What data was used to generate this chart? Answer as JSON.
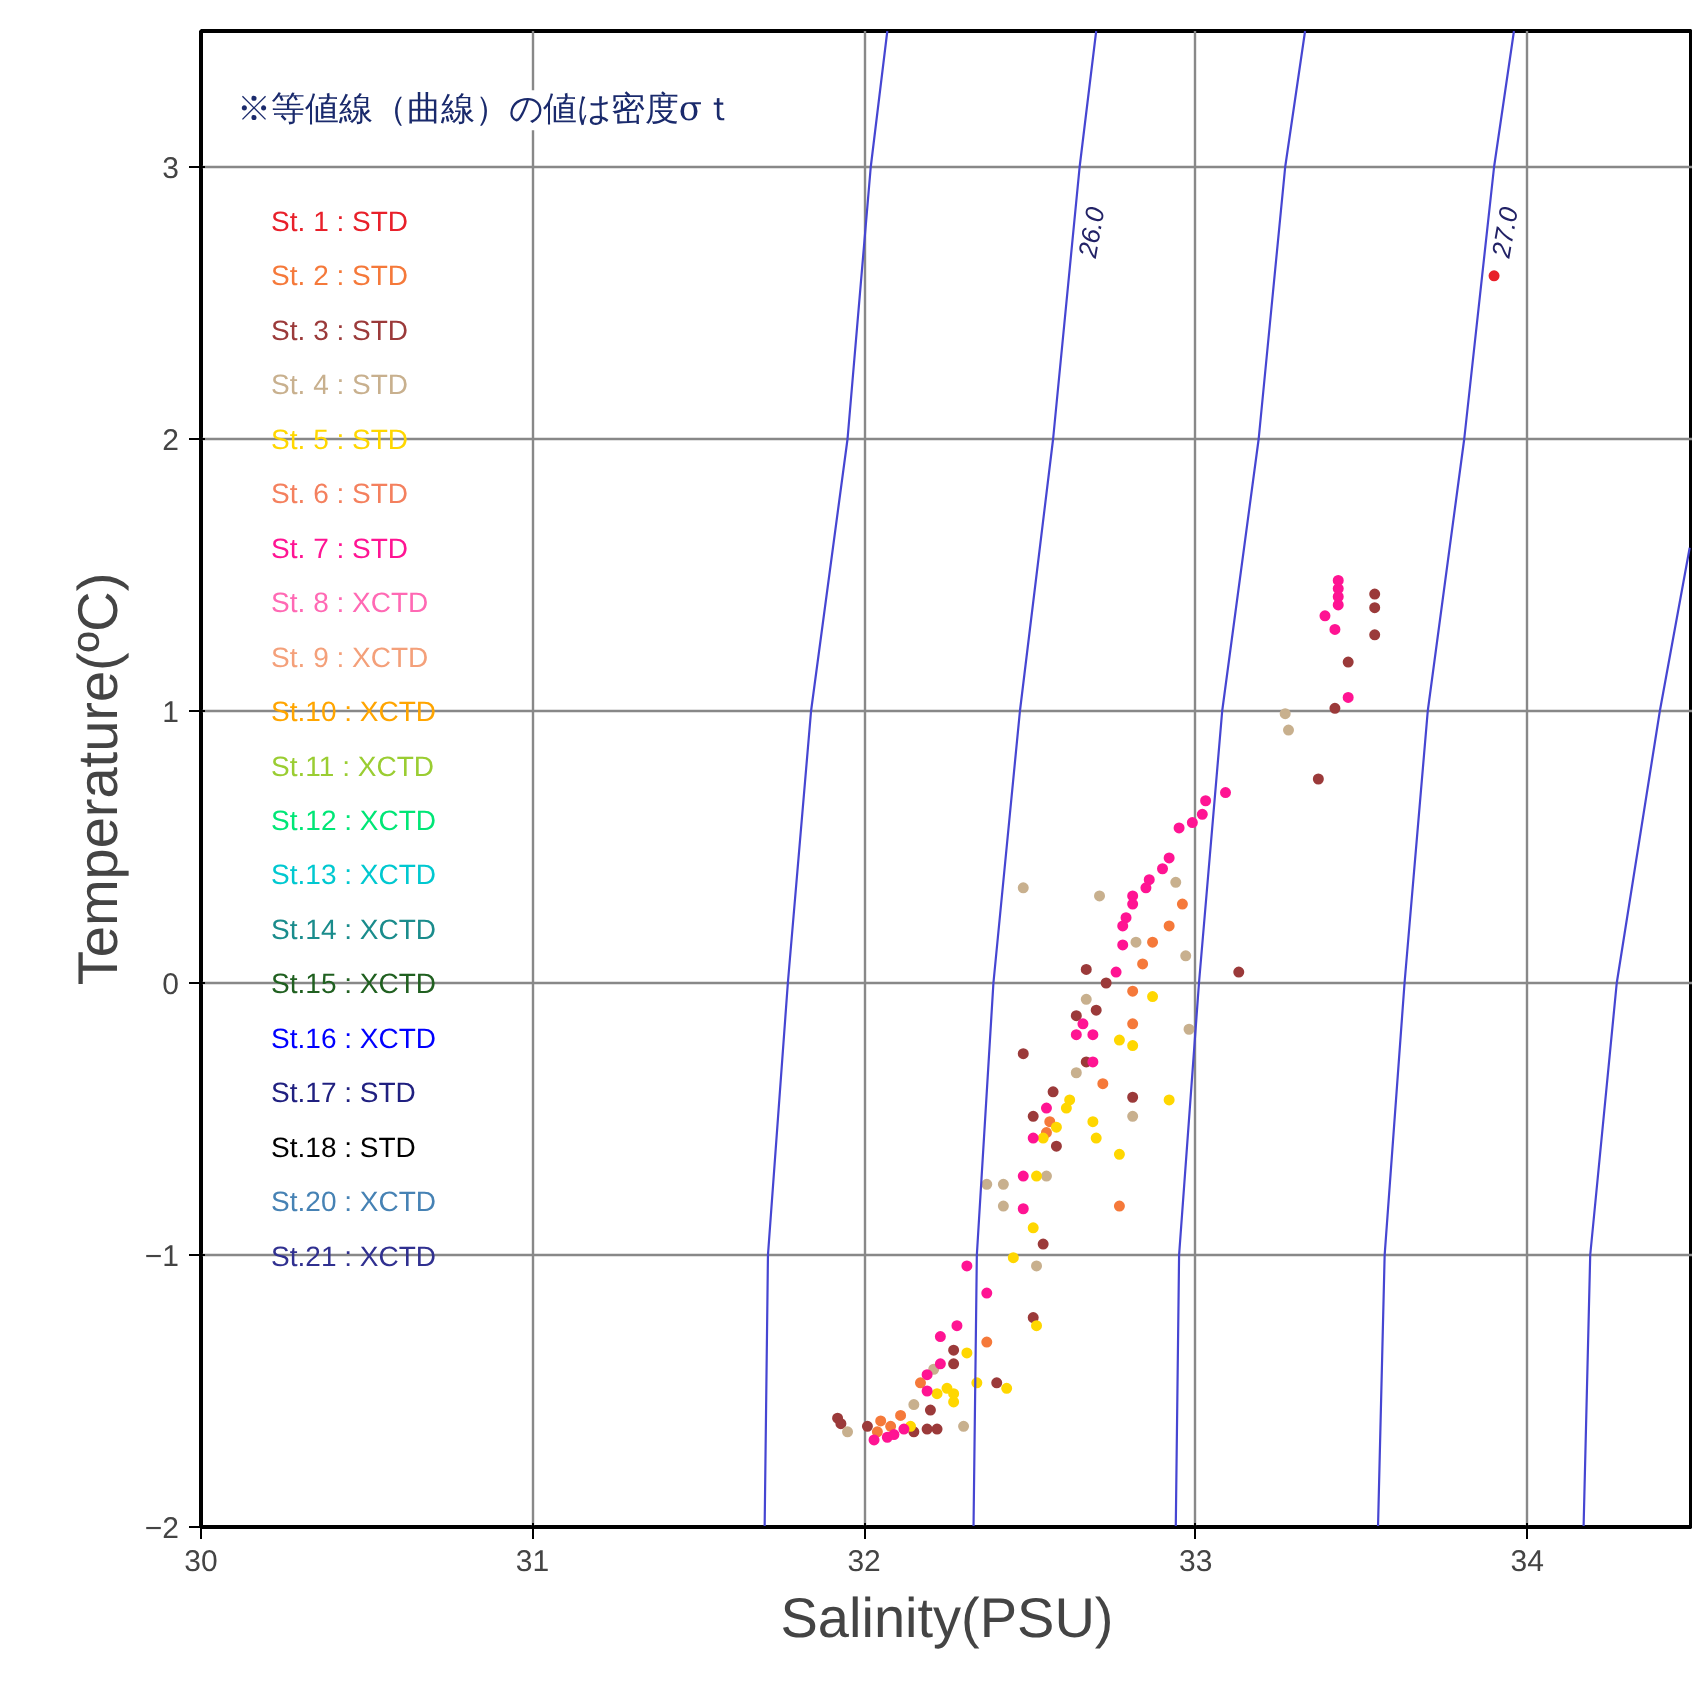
{
  "chart_data": {
    "type": "scatter",
    "xlabel": "Salinity(PSU)",
    "ylabel": "Temperature(ºC)",
    "xlim": [
      30,
      34.5
    ],
    "ylim": [
      -2,
      3.5
    ],
    "xticks": [
      30,
      31,
      32,
      33,
      34
    ],
    "yticks": [
      -2,
      -1,
      0,
      1,
      2,
      3
    ],
    "grid": true,
    "legend": "top left",
    "marker": "circle",
    "annotations": [
      "※等値線（曲線）の値は密度σｔ",
      {
        "text": "26.0",
        "x": 32.631,
        "y": 2.76
      },
      {
        "text": "27.0",
        "x": 33.878,
        "y": 2.76
      }
    ],
    "series": [
      {
        "name": "St. 1 : STD",
        "color": "#e8202a",
        "x": [
          33.9
        ],
        "values": [
          2.6
        ]
      },
      {
        "name": "St. 2 : STD",
        "color": "#f5793a",
        "x": [
          32.96,
          32.92,
          32.87,
          32.84,
          32.81,
          32.81,
          32.72,
          32.56,
          32.55,
          32.77,
          32.37,
          32.17,
          32.05,
          32.08,
          32.11,
          32.04
        ],
        "values": [
          0.29,
          0.21,
          0.15,
          0.07,
          -0.03,
          -0.15,
          -0.37,
          -0.51,
          -0.55,
          -0.82,
          -1.32,
          -1.47,
          -1.61,
          -1.63,
          -1.59,
          -1.65
        ]
      },
      {
        "name": "St. 3 : STD",
        "color": "#9b3a3a",
        "x": [
          33.54,
          33.54,
          33.54,
          33.46,
          33.42,
          33.37,
          33.13,
          32.67,
          32.73,
          32.7,
          32.64,
          32.48,
          32.67,
          32.57,
          32.81,
          32.51,
          32.58,
          32.54,
          32.51,
          32.27,
          32.27,
          32.4,
          32.2,
          31.92,
          31.93,
          32.01,
          32.15,
          32.19,
          32.22
        ],
        "values": [
          1.43,
          1.38,
          1.28,
          1.18,
          1.01,
          0.75,
          0.04,
          0.05,
          0.0,
          -0.1,
          -0.12,
          -0.26,
          -0.29,
          -0.4,
          -0.42,
          -0.49,
          -0.6,
          -0.96,
          -1.23,
          -1.35,
          -1.4,
          -1.47,
          -1.57,
          -1.6,
          -1.62,
          -1.63,
          -1.65,
          -1.64,
          -1.64
        ]
      },
      {
        "name": "St. 4 : STD",
        "color": "#c8b08e",
        "x": [
          33.27,
          33.28,
          32.94,
          32.97,
          32.48,
          32.71,
          32.82,
          32.67,
          32.98,
          32.64,
          32.81,
          32.55,
          32.37,
          32.42,
          32.42,
          32.52,
          32.21,
          32.15,
          31.95,
          32.3
        ],
        "values": [
          0.99,
          0.93,
          0.37,
          0.1,
          0.35,
          0.32,
          0.15,
          -0.06,
          -0.17,
          -0.33,
          -0.49,
          -0.71,
          -0.74,
          -0.74,
          -0.82,
          -1.04,
          -1.42,
          -1.55,
          -1.65,
          -1.63
        ]
      },
      {
        "name": "St. 5 : STD",
        "color": "#ffd700",
        "x": [
          32.87,
          32.77,
          32.81,
          32.62,
          32.61,
          32.92,
          32.58,
          32.54,
          32.69,
          32.7,
          32.77,
          32.52,
          32.51,
          32.45,
          32.52,
          32.31,
          32.34,
          32.43,
          32.25,
          32.27,
          32.22,
          32.27,
          32.14
        ],
        "values": [
          -0.05,
          -0.21,
          -0.23,
          -0.43,
          -0.46,
          -0.43,
          -0.53,
          -0.57,
          -0.51,
          -0.57,
          -0.63,
          -0.71,
          -0.9,
          -1.01,
          -1.26,
          -1.36,
          -1.47,
          -1.49,
          -1.49,
          -1.51,
          -1.51,
          -1.54,
          -1.63
        ]
      },
      {
        "name": "St. 6 : STD",
        "color": "#f4805e"
      },
      {
        "name": "St. 7 : STD",
        "color": "#ff1493",
        "x": [
          33.43,
          33.43,
          33.43,
          33.43,
          33.39,
          33.42,
          33.46,
          33.09,
          33.03,
          33.02,
          32.99,
          32.95,
          32.92,
          32.9,
          32.86,
          32.85,
          32.81,
          32.81,
          32.79,
          32.78,
          32.78,
          32.76,
          32.66,
          32.64,
          32.69,
          32.69,
          32.55,
          32.51,
          32.48,
          32.48,
          32.31,
          32.37,
          32.28,
          32.23,
          32.23,
          32.19,
          32.19,
          32.03,
          32.07,
          32.09,
          32.12
        ],
        "values": [
          1.48,
          1.45,
          1.42,
          1.39,
          1.35,
          1.3,
          1.05,
          0.7,
          0.67,
          0.62,
          0.59,
          0.57,
          0.46,
          0.42,
          0.38,
          0.35,
          0.32,
          0.29,
          0.24,
          0.21,
          0.14,
          0.04,
          -0.15,
          -0.19,
          -0.19,
          -0.29,
          -0.46,
          -0.57,
          -0.71,
          -0.83,
          -1.04,
          -1.14,
          -1.26,
          -1.3,
          -1.4,
          -1.44,
          -1.5,
          -1.68,
          -1.67,
          -1.66,
          -1.64
        ]
      },
      {
        "name": "St. 8 : XCTD",
        "color": "#ff69b4"
      },
      {
        "name": "St. 9 : XCTD",
        "color": "#f4a07a"
      },
      {
        "name": "St.10 : XCTD",
        "color": "#ffa500"
      },
      {
        "name": "St.11 : XCTD",
        "color": "#9acd32"
      },
      {
        "name": "St.12 : XCTD",
        "color": "#00e676"
      },
      {
        "name": "St.13 : XCTD",
        "color": "#00c8d0"
      },
      {
        "name": "St.14 : XCTD",
        "color": "#1a8c8c"
      },
      {
        "name": "St.15 : XCTD",
        "color": "#206020"
      },
      {
        "name": "St.16 : XCTD",
        "color": "#0000ff"
      },
      {
        "name": "St.17 : STD",
        "color": "#202080"
      },
      {
        "name": "St.18 : STD",
        "color": "#000000"
      },
      {
        "name": "St.20 : XCTD",
        "color": "#4682b4"
      },
      {
        "name": "St.21 : XCTD",
        "color": "#303090"
      },
      {
        "type": "line",
        "marker": "none",
        "color": "#4646d2",
        "x": [
          31.7,
          31.71,
          31.77,
          31.84,
          31.95,
          32.02,
          32.07
        ],
        "values": [
          -2,
          -1,
          0,
          1,
          2,
          3,
          3.5
        ]
      },
      {
        "type": "line",
        "marker": "none",
        "color": "#4646d2",
        "x": [
          32.33,
          32.34,
          32.39,
          32.47,
          32.57,
          32.65,
          32.7
        ],
        "values": [
          -2,
          -1,
          0,
          1,
          2,
          3,
          3.5
        ]
      },
      {
        "type": "line",
        "marker": "none",
        "color": "#4646d2",
        "x": [
          32.94,
          32.95,
          33.01,
          33.08,
          33.19,
          33.27,
          33.33
        ],
        "values": [
          -2,
          -1,
          0,
          1,
          2,
          3,
          3.5
        ]
      },
      {
        "type": "line",
        "marker": "none",
        "color": "#4646d2",
        "x": [
          33.55,
          33.57,
          33.63,
          33.7,
          33.81,
          33.9,
          33.96
        ],
        "values": [
          -2,
          -1,
          0,
          1,
          2,
          3,
          3.5
        ]
      },
      {
        "type": "line",
        "marker": "none",
        "color": "#4646d2",
        "x": [
          34.17,
          34.19,
          34.27,
          34.4,
          34.49
        ],
        "values": [
          -2,
          -1,
          0,
          1,
          1.6
        ]
      }
    ]
  }
}
